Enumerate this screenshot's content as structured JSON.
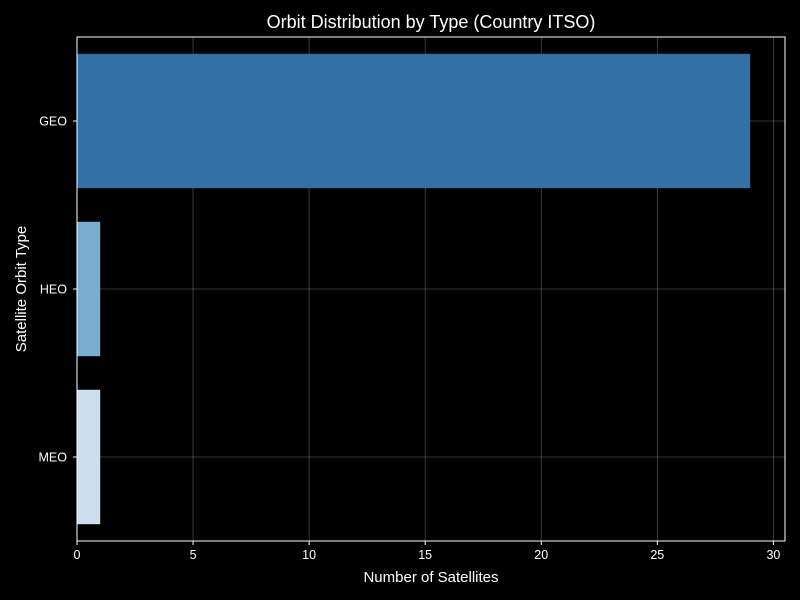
{
  "chart_data": {
    "type": "bar",
    "orientation": "horizontal",
    "title": "Orbit Distribution by Type (Country ITSO)",
    "xlabel": "Number of Satellites",
    "ylabel": "Satellite Orbit Type",
    "categories": [
      "GEO",
      "HEO",
      "MEO"
    ],
    "values": [
      29,
      1,
      1
    ],
    "colors": [
      "#3370a6",
      "#7aadcf",
      "#cddeee"
    ],
    "xlim": [
      0,
      30.5
    ],
    "xticks": [
      0,
      5,
      10,
      15,
      20,
      25,
      30
    ],
    "grid": true,
    "background": "#000000"
  }
}
